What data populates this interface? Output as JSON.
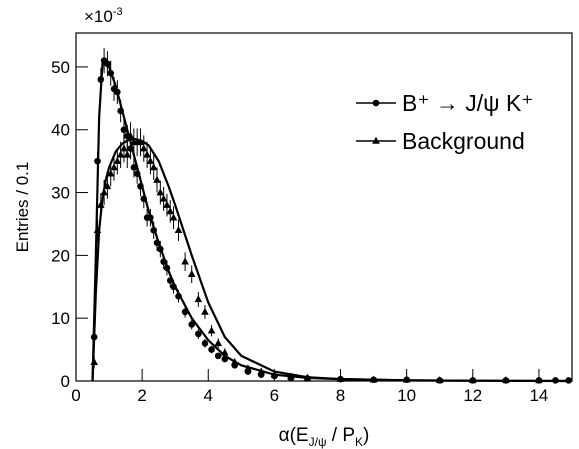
{
  "chart_data": {
    "type": "scatter",
    "y_label": "Entries / 0.1",
    "y_multiplier": [
      "×10",
      "-3"
    ],
    "x_label_parts": [
      "α(E",
      "J/ψ",
      " / P",
      "K",
      ")"
    ],
    "xlim": [
      0,
      15
    ],
    "xticks": [
      0,
      2,
      4,
      6,
      8,
      10,
      12,
      14
    ],
    "ylim": [
      0,
      55.4
    ],
    "yticks": [
      0,
      10,
      20,
      30,
      40,
      50
    ],
    "legend": "upper right",
    "series": [
      {
        "name": "B⁺ → J/ψ K⁺",
        "marker": "circle",
        "color": "#000000",
        "x": [
          0.55,
          0.65,
          0.75,
          0.85,
          0.95,
          1.05,
          1.15,
          1.25,
          1.35,
          1.45,
          1.55,
          1.65,
          1.75,
          1.85,
          1.95,
          2.05,
          2.15,
          2.25,
          2.35,
          2.45,
          2.55,
          2.65,
          2.75,
          2.85,
          2.95,
          3.1,
          3.3,
          3.5,
          3.7,
          3.9,
          4.1,
          4.3,
          4.5,
          4.8,
          5.2,
          5.6,
          6,
          6.5,
          7,
          8,
          9,
          10,
          11,
          12,
          13,
          14,
          14.5,
          14.9
        ],
        "values": [
          7,
          35,
          48,
          51,
          50.5,
          49,
          46.5,
          46,
          43,
          40,
          39,
          37,
          34,
          33,
          31,
          29,
          26,
          26,
          24,
          22,
          21,
          19,
          18,
          16,
          15,
          13.5,
          11,
          9,
          7.5,
          6,
          5,
          4,
          3.5,
          2.5,
          1.5,
          1,
          0.8,
          0.5,
          0.4,
          0.3,
          0.2,
          0.2,
          0.1,
          0.1,
          0.1,
          0.1,
          0.1,
          0.1
        ],
        "errors": [
          1,
          1.5,
          1.8,
          2,
          2,
          2,
          1.9,
          1.9,
          1.8,
          1.8,
          1.8,
          1.7,
          1.6,
          1.6,
          1.6,
          1.5,
          1.4,
          1.4,
          1.4,
          1.3,
          1.3,
          1.2,
          1.2,
          1.1,
          1.1,
          1,
          0.9,
          0.8,
          0.8,
          0.7,
          0.6,
          0.5,
          0.5,
          0.4,
          0.3,
          0.3,
          0.2,
          0.2,
          0.2,
          0.1,
          0.1,
          0.1,
          0.1,
          0.1,
          0.1,
          0.1,
          0.1,
          0.1
        ]
      },
      {
        "name": "Background",
        "marker": "triangle",
        "color": "#000000",
        "x": [
          0.55,
          0.65,
          0.75,
          0.85,
          0.95,
          1.05,
          1.15,
          1.25,
          1.35,
          1.45,
          1.55,
          1.65,
          1.75,
          1.85,
          1.95,
          2.05,
          2.15,
          2.25,
          2.35,
          2.45,
          2.55,
          2.65,
          2.75,
          2.85,
          2.95,
          3.1,
          3.3,
          3.5,
          3.7,
          3.9,
          4.1,
          4.3,
          4.5,
          4.8,
          5.2,
          5.6,
          6,
          6.5,
          7,
          8,
          9,
          10,
          11,
          12,
          13,
          14
        ],
        "values": [
          3,
          24,
          28,
          30,
          31,
          33,
          34,
          35,
          36,
          37,
          36,
          39,
          38,
          38,
          38,
          37,
          36,
          35,
          34,
          32,
          30,
          29,
          28,
          27,
          26,
          24,
          19,
          17,
          13,
          11,
          8,
          6,
          4.5,
          3,
          2,
          1.5,
          1,
          0.7,
          0.5,
          0.3,
          0.2,
          0.2,
          0.1,
          0.1,
          0.1,
          0.1
        ],
        "errors": [
          1,
          1.8,
          1.9,
          2,
          2,
          2,
          2.1,
          2.1,
          2.1,
          2.2,
          2.1,
          2.2,
          2.2,
          2.2,
          2.2,
          2.1,
          2.1,
          2.1,
          2,
          2,
          1.9,
          1.9,
          1.8,
          1.8,
          1.8,
          1.7,
          1.5,
          1.4,
          1.2,
          1.1,
          0.9,
          0.8,
          0.7,
          0.5,
          0.4,
          0.4,
          0.3,
          0.2,
          0.2,
          0.1,
          0.1,
          0.1,
          0.1,
          0.1,
          0.1,
          0.1
        ]
      }
    ],
    "fits": [
      {
        "x": [
          0.5,
          0.6,
          0.7,
          0.8,
          0.9,
          1.0,
          1.2,
          1.4,
          1.6,
          1.8,
          2.0,
          2.2,
          2.5,
          2.8,
          3.0,
          3.5,
          4,
          4.5,
          5,
          6,
          7,
          8,
          10,
          12,
          15
        ],
        "values": [
          0,
          20,
          42,
          50.5,
          51,
          50,
          47,
          43,
          39,
          35,
          31,
          27,
          22,
          17.5,
          15,
          10,
          6.5,
          4,
          2.5,
          1,
          0.5,
          0.3,
          0.1,
          0.05,
          0
        ]
      },
      {
        "x": [
          0.5,
          0.6,
          0.7,
          0.8,
          0.9,
          1.0,
          1.2,
          1.4,
          1.6,
          1.8,
          2.0,
          2.2,
          2.5,
          2.8,
          3.0,
          3.5,
          4,
          4.5,
          5,
          6,
          7,
          8,
          10,
          12,
          15
        ],
        "values": [
          0,
          14,
          24,
          29,
          32,
          34,
          36.5,
          37.8,
          38.4,
          38.5,
          38.2,
          37.5,
          35,
          31,
          28,
          20,
          12.5,
          7,
          4,
          1.5,
          0.6,
          0.3,
          0.1,
          0.05,
          0
        ]
      }
    ]
  }
}
